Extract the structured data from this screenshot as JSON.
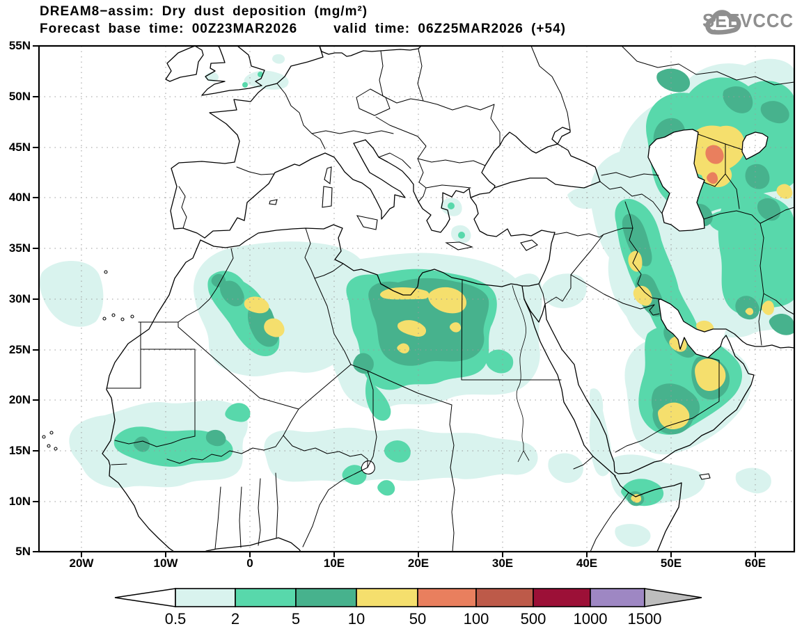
{
  "header": {
    "line1": "DREAM8−assim: Dry dust deposition (mg/m²)",
    "line2_left": "Forecast base time: 00Z23MAR2026",
    "line2_right": "valid time: 06Z25MAR2026 (+54)"
  },
  "logo": {
    "text": "SEEVCCC",
    "chevrons": "»",
    "color": "#8f8f8f"
  },
  "axes": {
    "lat_labels": [
      "55N",
      "50N",
      "45N",
      "40N",
      "35N",
      "30N",
      "25N",
      "20N",
      "15N",
      "10N",
      "5N"
    ],
    "lon_labels": [
      "20W",
      "10W",
      "0",
      "10E",
      "20E",
      "30E",
      "40E",
      "50E",
      "60E"
    ]
  },
  "legend": {
    "unit": "mg/m²",
    "values": [
      "0.5",
      "2",
      "5",
      "10",
      "50",
      "100",
      "500",
      "1000",
      "1500"
    ],
    "segment_colors": [
      "#d9f3ee",
      "#58d8ab",
      "#47b28d",
      "#f5df6d",
      "#e97f5e",
      "#bd5a49",
      "#9c1037",
      "#9e87c3"
    ],
    "below_min_color": "#ffffff",
    "above_max_color": "#bdbdbd"
  },
  "map_levels": [
    {
      "range": "0.5–2",
      "color": "#d9f3ee"
    },
    {
      "range": "2–5",
      "color": "#58d8ab"
    },
    {
      "range": "5–10",
      "color": "#47b28d"
    },
    {
      "range": "10–50",
      "color": "#f5df6d"
    },
    {
      "range": "50–100",
      "color": "#e97f5e"
    }
  ]
}
